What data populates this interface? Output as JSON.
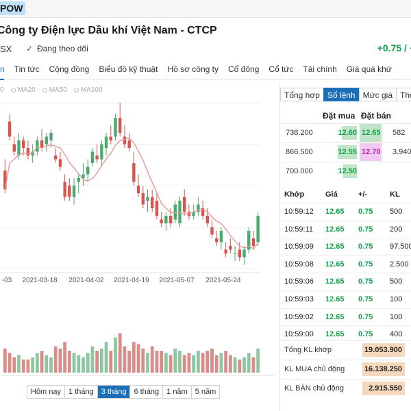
{
  "top": {
    "ticker": "POW"
  },
  "header": {
    "company": "Công ty Điện lực Dầu khí Việt Nam - CTCP",
    "exchange": "SX",
    "follow_label": "Đang theo dõi",
    "change": "+0.75 / +"
  },
  "nav": {
    "items": [
      {
        "label": "n"
      },
      {
        "label": "Tin tức"
      },
      {
        "label": "Cộng đồng"
      },
      {
        "label": "Biểu đồ kỹ thuật"
      },
      {
        "label": "Hồ sơ công ty"
      },
      {
        "label": "Cổ đông"
      },
      {
        "label": "Cổ tức"
      },
      {
        "label": "Tài chính"
      },
      {
        "label": "Giá quá khứ"
      }
    ]
  },
  "legend": {
    "items": [
      "0",
      "MA20",
      "MA50",
      "MA100"
    ]
  },
  "chart_data": {
    "type": "candlestick",
    "x_tick_labels": [
      "-03",
      "2021-03-18",
      "2021-04-02",
      "2021-04-19",
      "2021-05-07",
      "2021-05-24"
    ],
    "price_range": [
      11.8,
      14.9
    ],
    "up_color": "#4aaa6f",
    "down_color": "#d9534f",
    "ma_color": "#e39a92",
    "candles": [
      {
        "o": 13.1,
        "h": 13.4,
        "l": 12.5,
        "c": 12.6
      },
      {
        "o": 14.4,
        "h": 14.6,
        "l": 13.9,
        "c": 14.0
      },
      {
        "o": 13.8,
        "h": 14.0,
        "l": 13.5,
        "c": 13.6
      },
      {
        "o": 13.5,
        "h": 14.1,
        "l": 13.4,
        "c": 13.9
      },
      {
        "o": 13.9,
        "h": 14.0,
        "l": 13.5,
        "c": 13.7
      },
      {
        "o": 13.7,
        "h": 13.9,
        "l": 13.4,
        "c": 13.5
      },
      {
        "o": 13.5,
        "h": 13.8,
        "l": 13.3,
        "c": 13.6
      },
      {
        "o": 13.6,
        "h": 14.0,
        "l": 13.5,
        "c": 13.9
      },
      {
        "o": 13.9,
        "h": 14.2,
        "l": 13.6,
        "c": 13.7
      },
      {
        "o": 13.8,
        "h": 14.1,
        "l": 13.6,
        "c": 14.0
      },
      {
        "o": 13.9,
        "h": 14.2,
        "l": 13.7,
        "c": 14.1
      },
      {
        "o": 13.5,
        "h": 13.7,
        "l": 13.3,
        "c": 13.4
      },
      {
        "o": 13.4,
        "h": 13.6,
        "l": 13.1,
        "c": 13.2
      },
      {
        "o": 12.8,
        "h": 13.0,
        "l": 12.3,
        "c": 12.4
      },
      {
        "o": 12.7,
        "h": 12.9,
        "l": 12.3,
        "c": 12.4
      },
      {
        "o": 12.4,
        "h": 12.9,
        "l": 12.2,
        "c": 12.7
      },
      {
        "o": 12.8,
        "h": 13.0,
        "l": 12.5,
        "c": 12.9
      },
      {
        "o": 12.9,
        "h": 13.3,
        "l": 12.7,
        "c": 13.0
      },
      {
        "o": 13.0,
        "h": 13.4,
        "l": 12.8,
        "c": 13.2
      },
      {
        "o": 13.3,
        "h": 13.7,
        "l": 13.2,
        "c": 13.6
      },
      {
        "o": 13.5,
        "h": 13.8,
        "l": 13.3,
        "c": 13.4
      },
      {
        "o": 13.4,
        "h": 13.9,
        "l": 13.2,
        "c": 13.8
      },
      {
        "o": 13.7,
        "h": 14.1,
        "l": 13.5,
        "c": 14.0
      },
      {
        "o": 14.0,
        "h": 14.3,
        "l": 13.8,
        "c": 13.9
      },
      {
        "o": 14.0,
        "h": 14.6,
        "l": 13.9,
        "c": 14.5
      },
      {
        "o": 14.5,
        "h": 14.9,
        "l": 14.0,
        "c": 14.1
      },
      {
        "o": 14.0,
        "h": 14.3,
        "l": 13.7,
        "c": 13.8
      },
      {
        "o": 13.9,
        "h": 14.1,
        "l": 13.6,
        "c": 13.7
      },
      {
        "o": 13.3,
        "h": 13.6,
        "l": 12.7,
        "c": 12.8
      },
      {
        "o": 12.7,
        "h": 13.0,
        "l": 12.4,
        "c": 12.5
      },
      {
        "o": 12.5,
        "h": 12.7,
        "l": 12.1,
        "c": 12.2
      },
      {
        "o": 12.3,
        "h": 12.6,
        "l": 12.0,
        "c": 12.4
      },
      {
        "o": 12.4,
        "h": 12.6,
        "l": 12.0,
        "c": 12.1
      },
      {
        "o": 12.3,
        "h": 12.5,
        "l": 11.8,
        "c": 11.9
      },
      {
        "o": 11.8,
        "h": 12.0,
        "l": 11.6,
        "c": 11.7
      },
      {
        "o": 11.7,
        "h": 12.0,
        "l": 11.5,
        "c": 11.9
      },
      {
        "o": 11.9,
        "h": 12.1,
        "l": 11.6,
        "c": 11.7
      },
      {
        "o": 11.8,
        "h": 12.3,
        "l": 11.7,
        "c": 12.2
      },
      {
        "o": 11.7,
        "h": 12.4,
        "l": 11.6,
        "c": 12.3
      },
      {
        "o": 12.4,
        "h": 12.6,
        "l": 11.9,
        "c": 12.0
      },
      {
        "o": 12.0,
        "h": 12.2,
        "l": 11.8,
        "c": 11.9
      },
      {
        "o": 11.9,
        "h": 12.2,
        "l": 11.8,
        "c": 12.0
      },
      {
        "o": 12.0,
        "h": 12.4,
        "l": 11.9,
        "c": 12.2
      },
      {
        "o": 12.1,
        "h": 12.3,
        "l": 11.8,
        "c": 11.9
      },
      {
        "o": 11.9,
        "h": 12.1,
        "l": 11.6,
        "c": 11.7
      },
      {
        "o": 11.6,
        "h": 11.8,
        "l": 11.3,
        "c": 11.4
      },
      {
        "o": 11.3,
        "h": 11.5,
        "l": 11.1,
        "c": 11.2
      },
      {
        "o": 11.2,
        "h": 11.6,
        "l": 11.0,
        "c": 11.5
      },
      {
        "o": 11.0,
        "h": 11.2,
        "l": 10.8,
        "c": 10.9
      },
      {
        "o": 11.1,
        "h": 11.3,
        "l": 10.9,
        "c": 11.0
      },
      {
        "o": 10.9,
        "h": 11.1,
        "l": 10.7,
        "c": 10.9
      },
      {
        "o": 11.0,
        "h": 11.2,
        "l": 10.7,
        "c": 10.8
      },
      {
        "o": 10.8,
        "h": 11.1,
        "l": 10.6,
        "c": 11.0
      },
      {
        "o": 11.0,
        "h": 11.6,
        "l": 10.9,
        "c": 11.5
      },
      {
        "o": 11.3,
        "h": 11.5,
        "l": 11.0,
        "c": 11.1
      },
      {
        "o": 11.2,
        "h": 12.0,
        "l": 11.1,
        "c": 11.9
      }
    ],
    "volumes": [
      0.55,
      0.45,
      0.35,
      0.4,
      0.3,
      0.3,
      0.35,
      0.45,
      0.5,
      0.4,
      0.35,
      0.6,
      0.55,
      0.7,
      0.5,
      0.45,
      0.4,
      0.35,
      0.45,
      0.6,
      0.5,
      0.55,
      0.7,
      0.5,
      0.8,
      0.9,
      0.6,
      0.5,
      0.7,
      0.65,
      0.55,
      0.45,
      0.6,
      0.5,
      0.5,
      0.45,
      0.4,
      0.55,
      0.5,
      0.4,
      0.45,
      0.4,
      0.5,
      0.45,
      0.5,
      0.55,
      0.4,
      0.45,
      0.5,
      0.4,
      0.35,
      0.3,
      0.35,
      0.45,
      0.35,
      0.55
    ],
    "volume_ylim": [
      0,
      1
    ]
  },
  "range_buttons": [
    {
      "label": "Hôm nay",
      "active": false
    },
    {
      "label": "1 tháng",
      "active": false
    },
    {
      "label": "3 tháng",
      "active": true
    },
    {
      "label": "6 tháng",
      "active": false
    },
    {
      "label": "1 năm",
      "active": false
    },
    {
      "label": "5 năm",
      "active": false
    }
  ],
  "panel": {
    "tabs": [
      {
        "label": "Tổng hợp",
        "active": false
      },
      {
        "label": "Sổ lệnh",
        "active": true
      },
      {
        "label": "Mức giá",
        "active": false
      },
      {
        "label": "Thống",
        "active": false
      }
    ],
    "orderbook_headers": {
      "bid": "Đặt mua",
      "ask": "Đặt bán"
    },
    "orderbook": [
      {
        "bid_vol": "738.200",
        "bid": "12.60",
        "ask": "12.65",
        "ask_vol": "582",
        "bid_share": 0.55,
        "ask_color": "#10a34a",
        "ask_bg": "#bfe4c7"
      },
      {
        "bid_vol": "866.500",
        "bid": "12.55",
        "ask": "12.70",
        "ask_vol": "3.940",
        "bid_share": 0.7,
        "ask_color": "#b222b5",
        "ask_bg": "#f1c9f1"
      },
      {
        "bid_vol": "700.000",
        "bid": "12.50",
        "ask": "",
        "ask_vol": "",
        "bid_share": 0.5,
        "ask_color": "#10a34a",
        "ask_bg": "transparent"
      }
    ],
    "trades_headers": {
      "time": "Khớp",
      "price": "Giá",
      "change": "+/-",
      "volume": "KL"
    },
    "trades": [
      {
        "time": "10:59:12",
        "price": "12.65",
        "change": "0.75",
        "volume": "500"
      },
      {
        "time": "10:59:11",
        "price": "12.65",
        "change": "0.75",
        "volume": "200"
      },
      {
        "time": "10:59:09",
        "price": "12.65",
        "change": "0.75",
        "volume": "97.500"
      },
      {
        "time": "10:59:08",
        "price": "12.65",
        "change": "0.75",
        "volume": "2.500"
      },
      {
        "time": "10:59:06",
        "price": "12.65",
        "change": "0.75",
        "volume": "500"
      },
      {
        "time": "10:59:03",
        "price": "12.65",
        "change": "0.75",
        "volume": "100"
      },
      {
        "time": "10:59:02",
        "price": "12.65",
        "change": "0.75",
        "volume": "100"
      },
      {
        "time": "10:59:00",
        "price": "12.65",
        "change": "0.75",
        "volume": "400"
      }
    ],
    "summary": [
      {
        "label": "Tổng KL khớp",
        "value": "19.053.900"
      },
      {
        "label": "KL MUA chủ động",
        "value": "16.138.250"
      },
      {
        "label": "KL BÁN chủ động",
        "value": "2.915.550"
      }
    ]
  }
}
